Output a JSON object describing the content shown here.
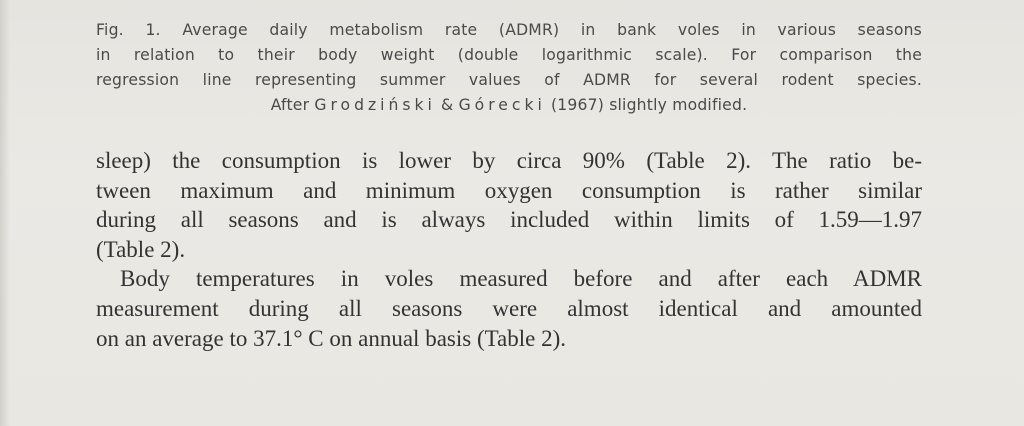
{
  "caption": {
    "line1": "Fig. 1. Average daily metabolism rate (ADMR) in bank voles in various seasons",
    "line2": "in relation to their body weight (double logarithmic scale). For comparison the",
    "line3": "regression line representing summer values of ADMR for several rodent species.",
    "line4_a": "After",
    "author1": "Grodziński",
    "amp": "&",
    "author2": "Górecki",
    "line4_b": "(1967) slightly modified."
  },
  "paragraph1": {
    "line1": "sleep) the consumption is lower by circa 90% (Table 2). The ratio be-",
    "line2": "tween maximum and minimum oxygen consumption is rather similar",
    "line3": "during all seasons and is always included within limits of 1.59—1.97",
    "line4": "(Table 2)."
  },
  "paragraph2": {
    "line1": "Body temperatures in voles measured before and after each ADMR",
    "line2": "measurement during all seasons were almost identical and amounted",
    "line3": "on an average to 37.1° C on annual basis (Table 2)."
  }
}
